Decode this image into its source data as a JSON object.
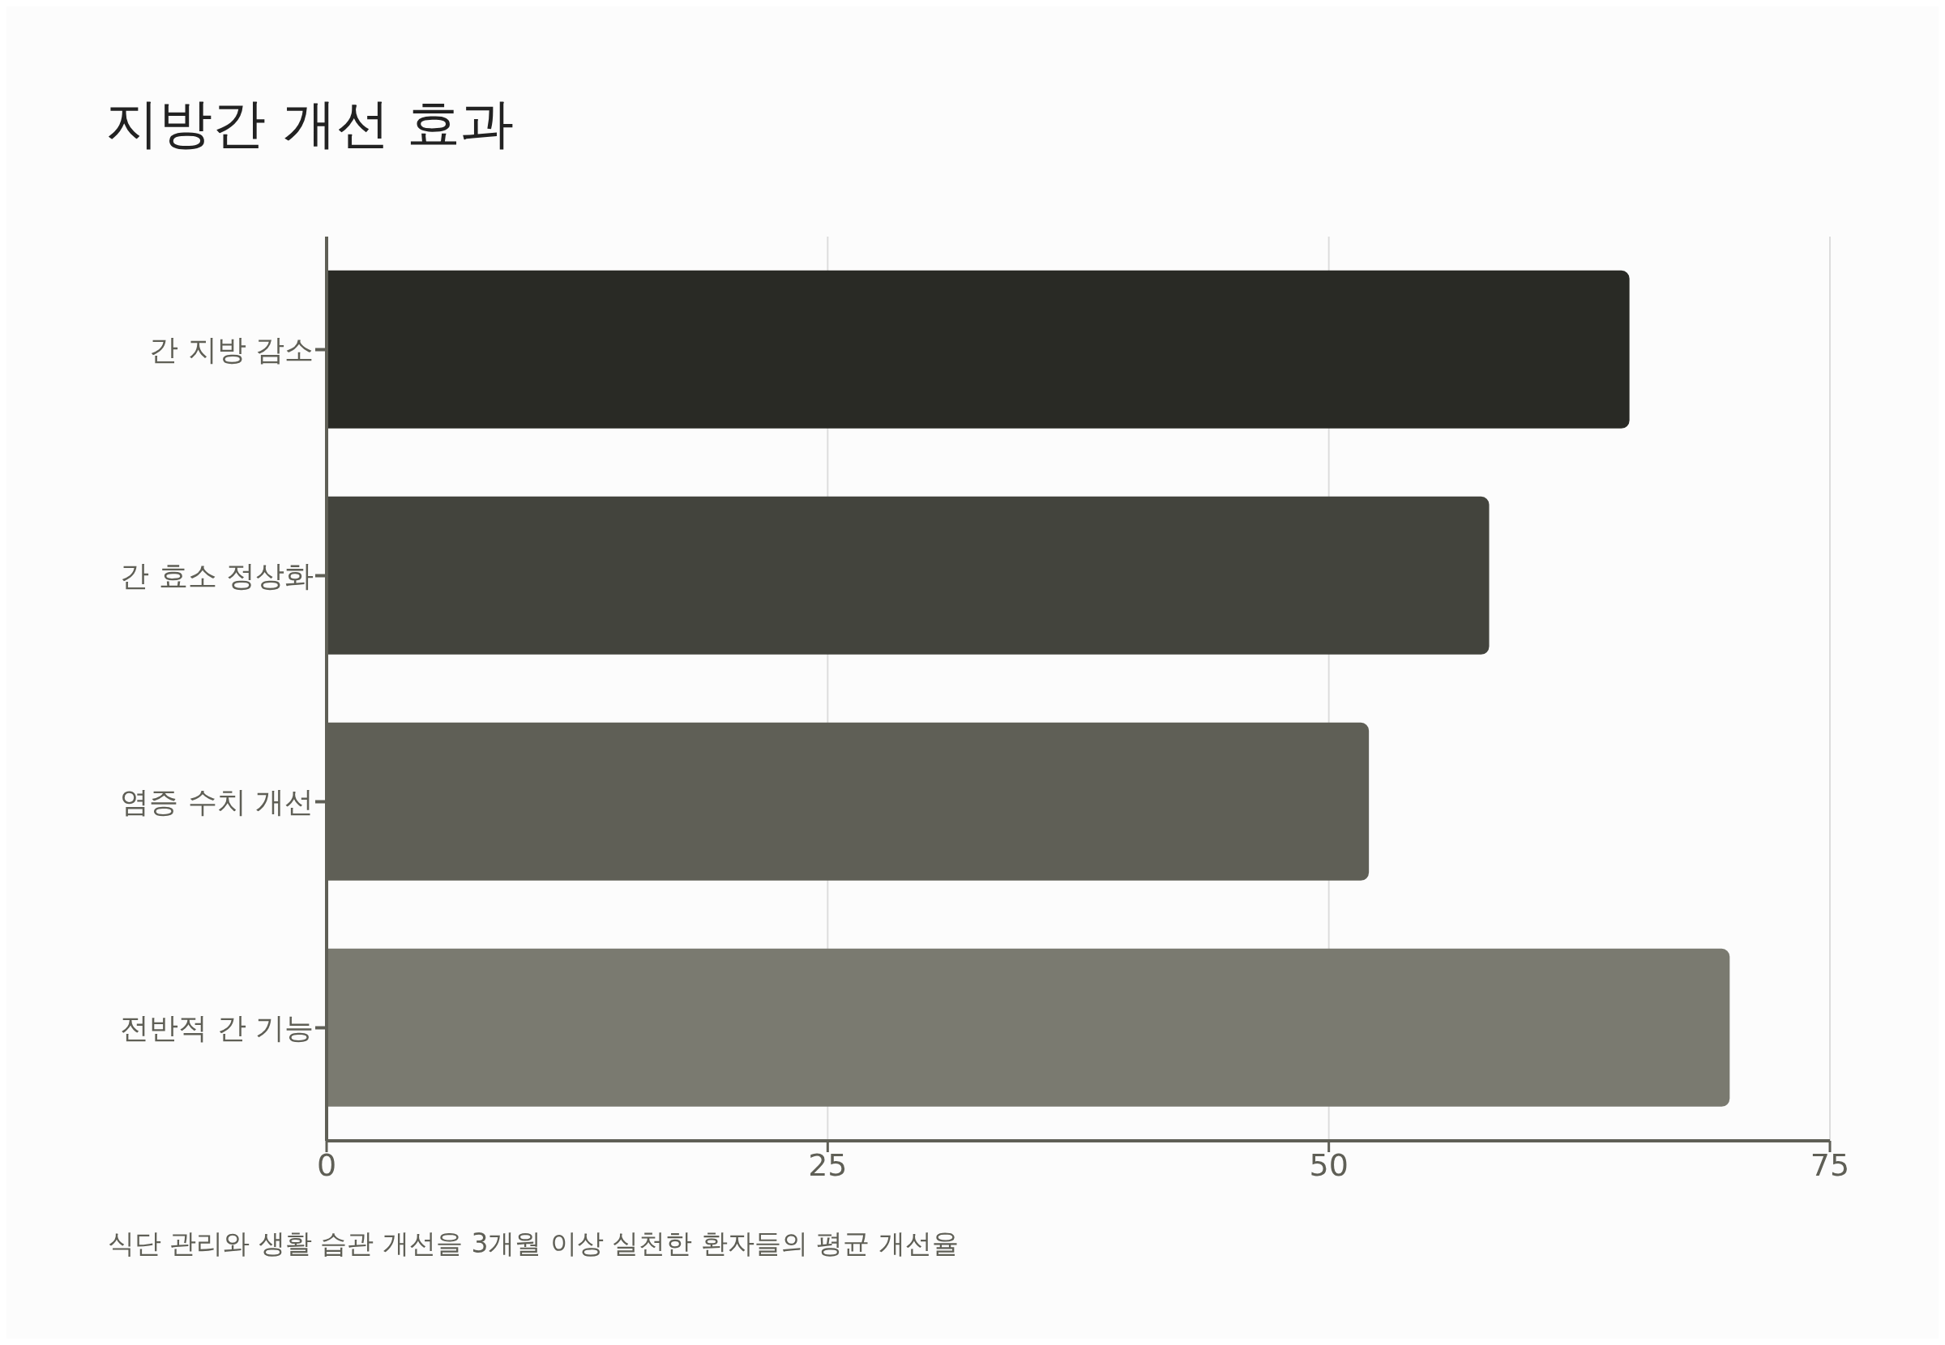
{
  "chart_data": {
    "type": "bar",
    "orientation": "horizontal",
    "title": "지방간 개선 효과",
    "categories": [
      "간 지방 감소",
      "간 효소 정상화",
      "염증 수치 개선",
      "전반적 간 기능"
    ],
    "values": [
      65,
      58,
      52,
      70
    ],
    "colors": [
      "#292a25",
      "#43443d",
      "#5f5f56",
      "#7a7a70"
    ],
    "xlim": [
      0,
      75
    ],
    "xticks": [
      0,
      25,
      50,
      75
    ],
    "grid": "x",
    "annotations": [
      "식단 관리와 생활 습관 개선을 3개월 이상 실천한 환자들의 평균 개선율"
    ]
  }
}
